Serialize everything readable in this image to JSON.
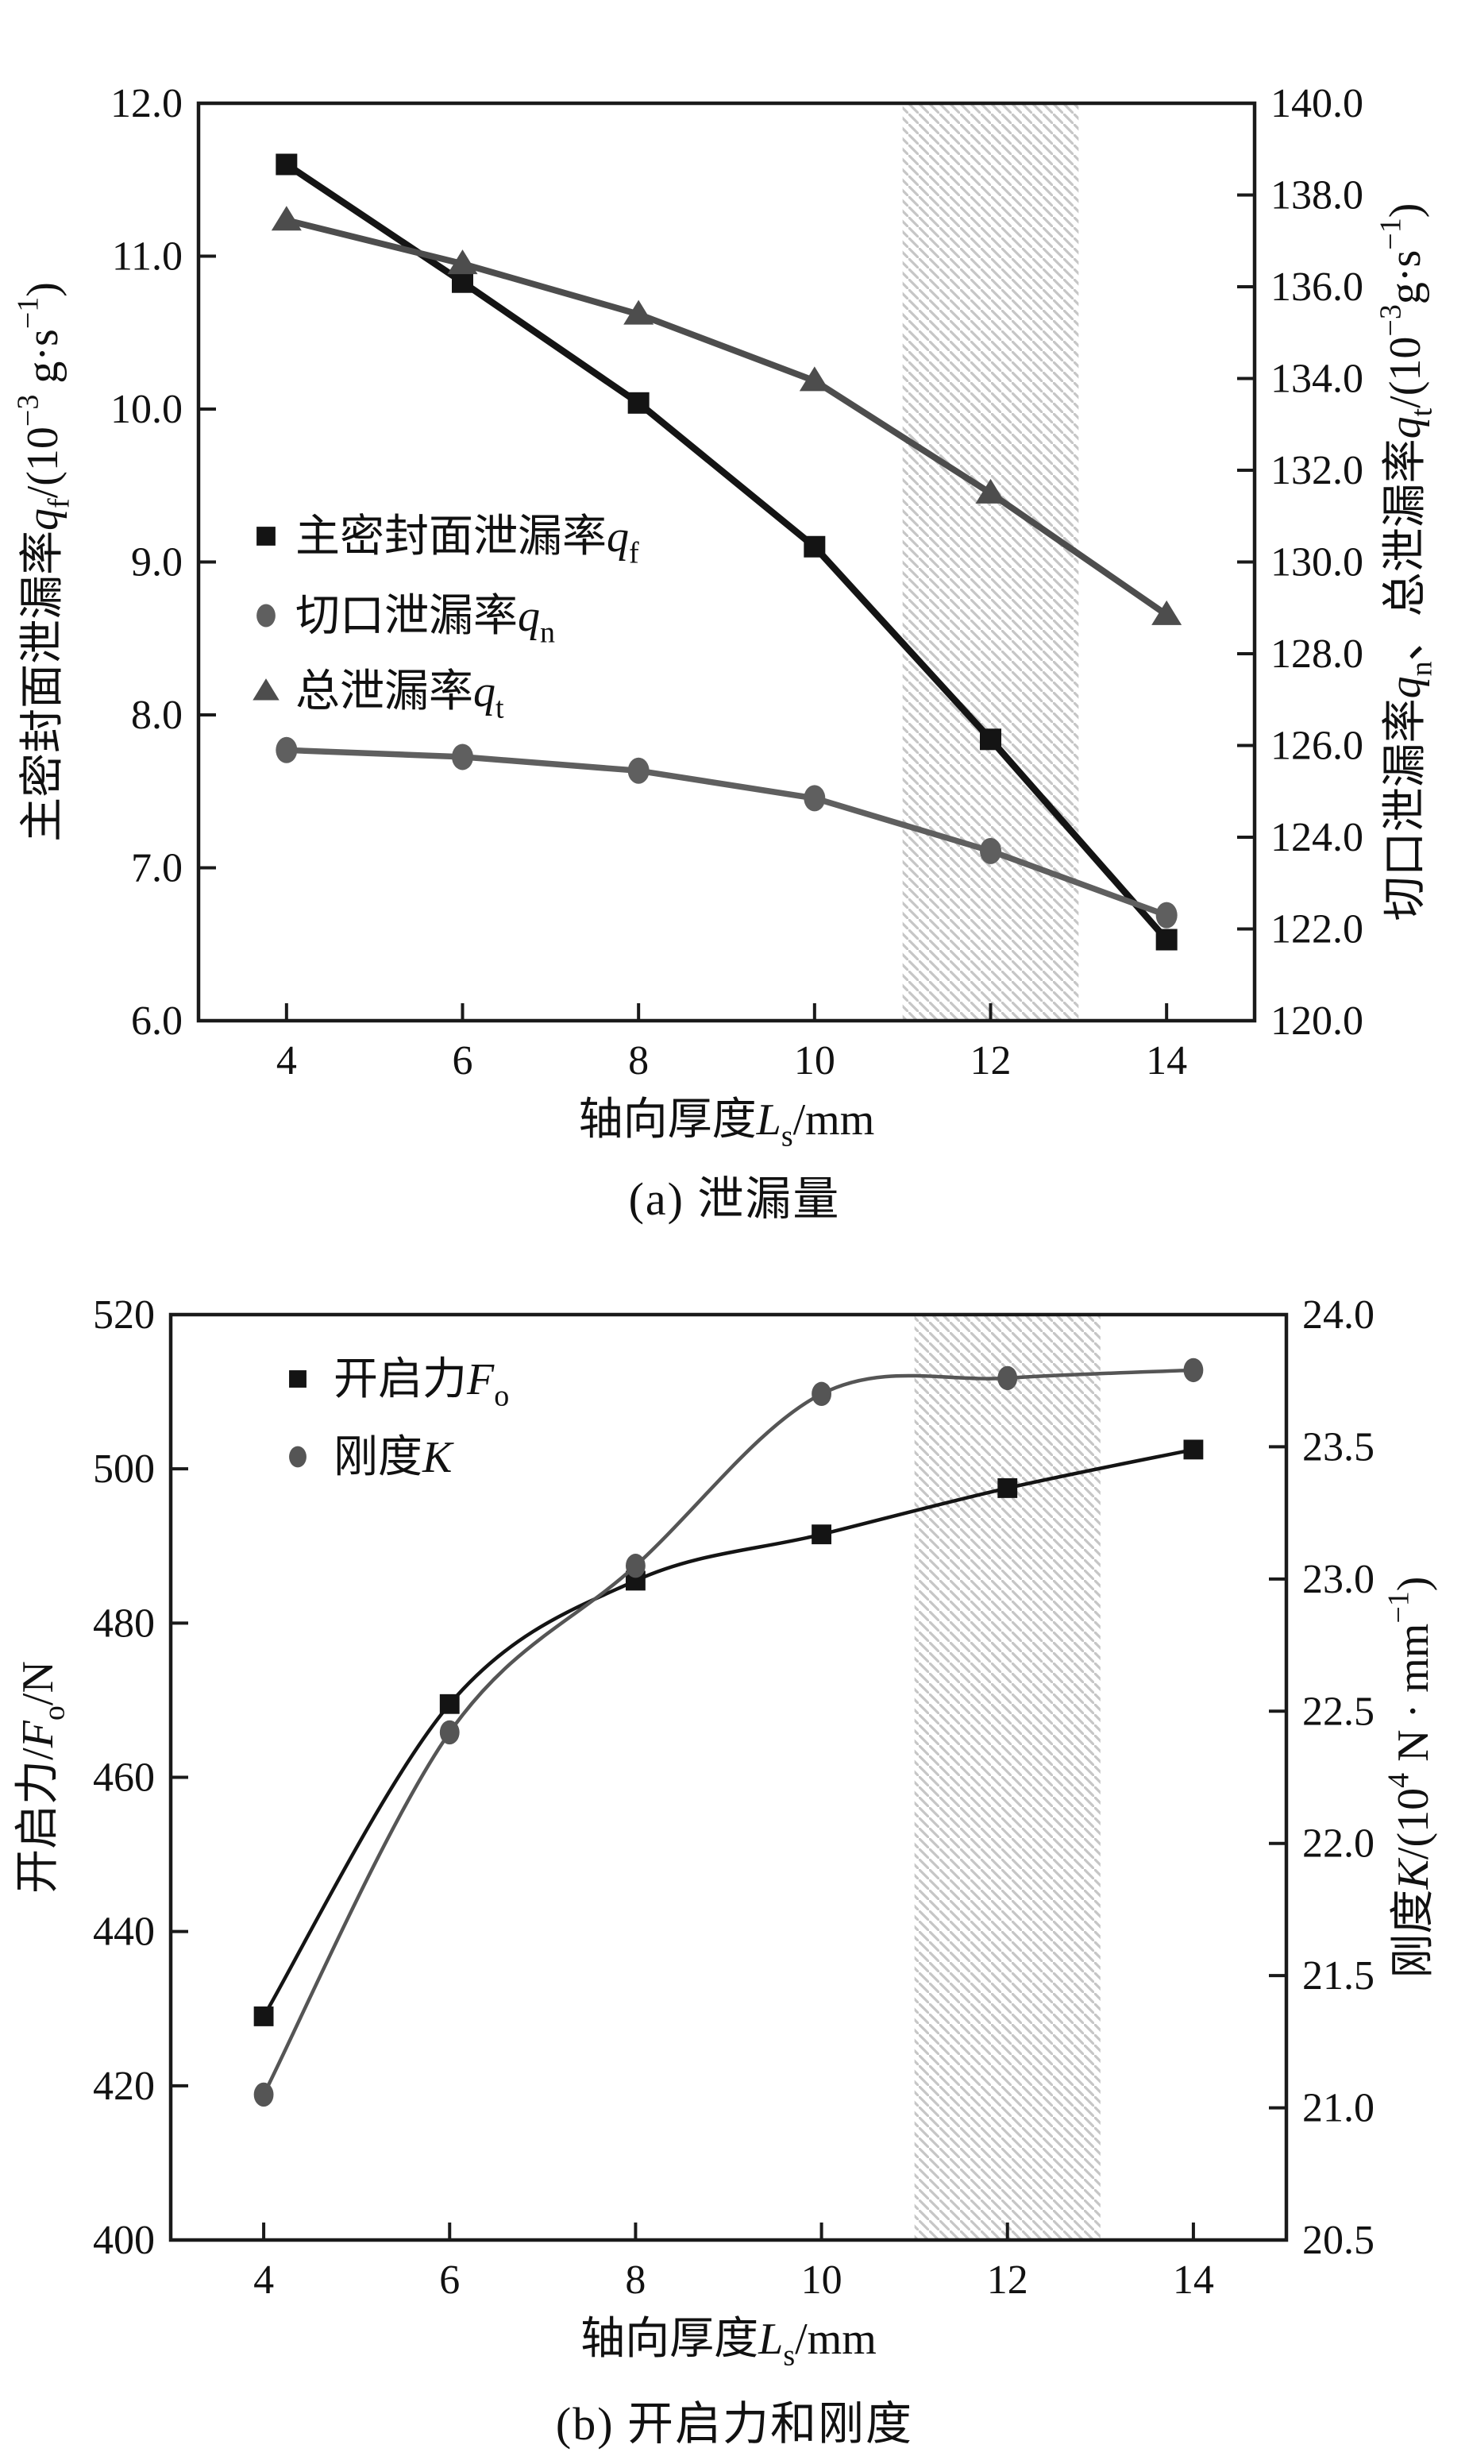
{
  "page": {
    "background": "#ffffff"
  },
  "colors": {
    "axis": "#1a1a1a",
    "black_series": "#141414",
    "gray_series": "#555555",
    "circle_series": "#5f5f5f",
    "hatch": "#c6c6c6",
    "text": "#111111"
  },
  "chart_data": [
    {
      "type": "line",
      "id": "a",
      "caption": "(a) 泄漏量",
      "xlabel_parts": [
        {
          "t": "轴向厚度"
        },
        {
          "t": "L",
          "i": 1
        },
        {
          "t": "s",
          "sub": 1
        },
        {
          "t": "/mm"
        }
      ],
      "x": [
        4,
        6,
        8,
        10,
        12,
        14
      ],
      "xlim": [
        3,
        15
      ],
      "xticks": [
        "4",
        "6",
        "8",
        "10",
        "12",
        "14"
      ],
      "grid": false,
      "legend_position": "inside-left",
      "band": {
        "x0": 11,
        "x1": 13
      },
      "axes": {
        "left": {
          "lim": [
            6.0,
            12.0
          ],
          "ticks": [
            "12.0",
            "11.0",
            "10.0",
            "9.0",
            "8.0",
            "7.0",
            "6.0"
          ],
          "label_parts": [
            {
              "t": "主密封面泄漏率"
            },
            {
              "t": "q",
              "i": 1
            },
            {
              "t": "f",
              "sub": 1
            },
            {
              "t": "/(10"
            },
            {
              "t": "−3",
              "sup": 1
            },
            {
              "t": " g·s"
            },
            {
              "t": "−1",
              "sup": 1
            },
            {
              "t": ")"
            }
          ]
        },
        "right": {
          "lim": [
            120.0,
            140.0
          ],
          "ticks": [
            "140.0",
            "138.0",
            "136.0",
            "134.0",
            "132.0",
            "130.0",
            "128.0",
            "126.0",
            "124.0",
            "122.0",
            "120.0"
          ],
          "label_parts": [
            {
              "t": "切口泄漏率"
            },
            {
              "t": "q",
              "i": 1
            },
            {
              "t": "n",
              "sub": 1
            },
            {
              "t": "、总泄漏率"
            },
            {
              "t": "q",
              "i": 1
            },
            {
              "t": "t",
              "sub": 1
            },
            {
              "t": "/(10"
            },
            {
              "t": "−3",
              "sup": 1
            },
            {
              "t": "g·s"
            },
            {
              "t": "−1",
              "sup": 1
            },
            {
              "t": ")"
            }
          ]
        }
      },
      "series": [
        {
          "name_parts": [
            {
              "t": "主密封面泄漏率"
            },
            {
              "t": "q",
              "i": 1
            },
            {
              "t": "f",
              "sub": 1
            }
          ],
          "axis": "left",
          "marker": "square",
          "color": "#141414",
          "line": "straight",
          "width": 8.5,
          "values": [
            11.6,
            10.83,
            10.04,
            9.1,
            7.84,
            6.53
          ]
        },
        {
          "name_parts": [
            {
              "t": "切口泄漏率"
            },
            {
              "t": "q",
              "i": 1
            },
            {
              "t": "n",
              "sub": 1
            }
          ],
          "axis": "right",
          "marker": "circle",
          "color": "#5f5f5f",
          "line": "straight",
          "width": 7.5,
          "values": [
            125.9,
            125.75,
            125.45,
            124.85,
            123.7,
            122.3
          ]
        },
        {
          "name_parts": [
            {
              "t": "总泄漏率"
            },
            {
              "t": "q",
              "i": 1
            },
            {
              "t": "t",
              "sub": 1
            }
          ],
          "axis": "right",
          "marker": "triangle",
          "color": "#4d4d4d",
          "line": "straight",
          "width": 8,
          "values": [
            137.45,
            136.5,
            135.4,
            133.95,
            131.5,
            128.85
          ]
        }
      ]
    },
    {
      "type": "line",
      "id": "b",
      "caption": "(b) 开启力和刚度",
      "xlabel_parts": [
        {
          "t": "轴向厚度"
        },
        {
          "t": "L",
          "i": 1
        },
        {
          "t": "s",
          "sub": 1
        },
        {
          "t": "/mm"
        }
      ],
      "x": [
        4,
        6,
        8,
        10,
        12,
        14
      ],
      "xlim": [
        3,
        15
      ],
      "xticks": [
        "4",
        "6",
        "8",
        "10",
        "12",
        "14"
      ],
      "grid": false,
      "legend_position": "inside-left",
      "band": {
        "x0": 11,
        "x1": 13
      },
      "axes": {
        "left": {
          "lim": [
            400,
            520
          ],
          "ticks": [
            "520",
            "500",
            "480",
            "460",
            "440",
            "420",
            "400"
          ],
          "label_parts": [
            {
              "t": "开启力/"
            },
            {
              "t": "F",
              "i": 1
            },
            {
              "t": "o",
              "sub": 1
            },
            {
              "t": "/N"
            }
          ]
        },
        "right": {
          "lim": [
            20.5,
            24.0
          ],
          "ticks": [
            "24.0",
            "23.5",
            "23.0",
            "22.5",
            "22.0",
            "21.5",
            "21.0",
            "20.5"
          ],
          "label_parts": [
            {
              "t": "刚度"
            },
            {
              "t": "K",
              "i": 1
            },
            {
              "t": "/(10"
            },
            {
              "t": "4",
              "sup": 1
            },
            {
              "t": " N · mm"
            },
            {
              "t": "−1",
              "sup": 1
            },
            {
              "t": ")"
            }
          ]
        }
      },
      "series": [
        {
          "name_parts": [
            {
              "t": "开启力"
            },
            {
              "t": "F",
              "i": 1
            },
            {
              "t": "o",
              "sub": 1
            }
          ],
          "axis": "left",
          "marker": "square",
          "color": "#141414",
          "line": "smooth",
          "width": 4.5,
          "values": [
            429,
            469.5,
            485.5,
            491.5,
            497.5,
            502.5
          ]
        },
        {
          "name_parts": [
            {
              "t": "刚度"
            },
            {
              "t": "K",
              "i": 1
            }
          ],
          "axis": "right",
          "marker": "circle",
          "color": "#555555",
          "line": "smooth",
          "width": 4.5,
          "values": [
            21.05,
            22.42,
            23.05,
            23.7,
            23.76,
            23.79
          ]
        }
      ]
    }
  ]
}
